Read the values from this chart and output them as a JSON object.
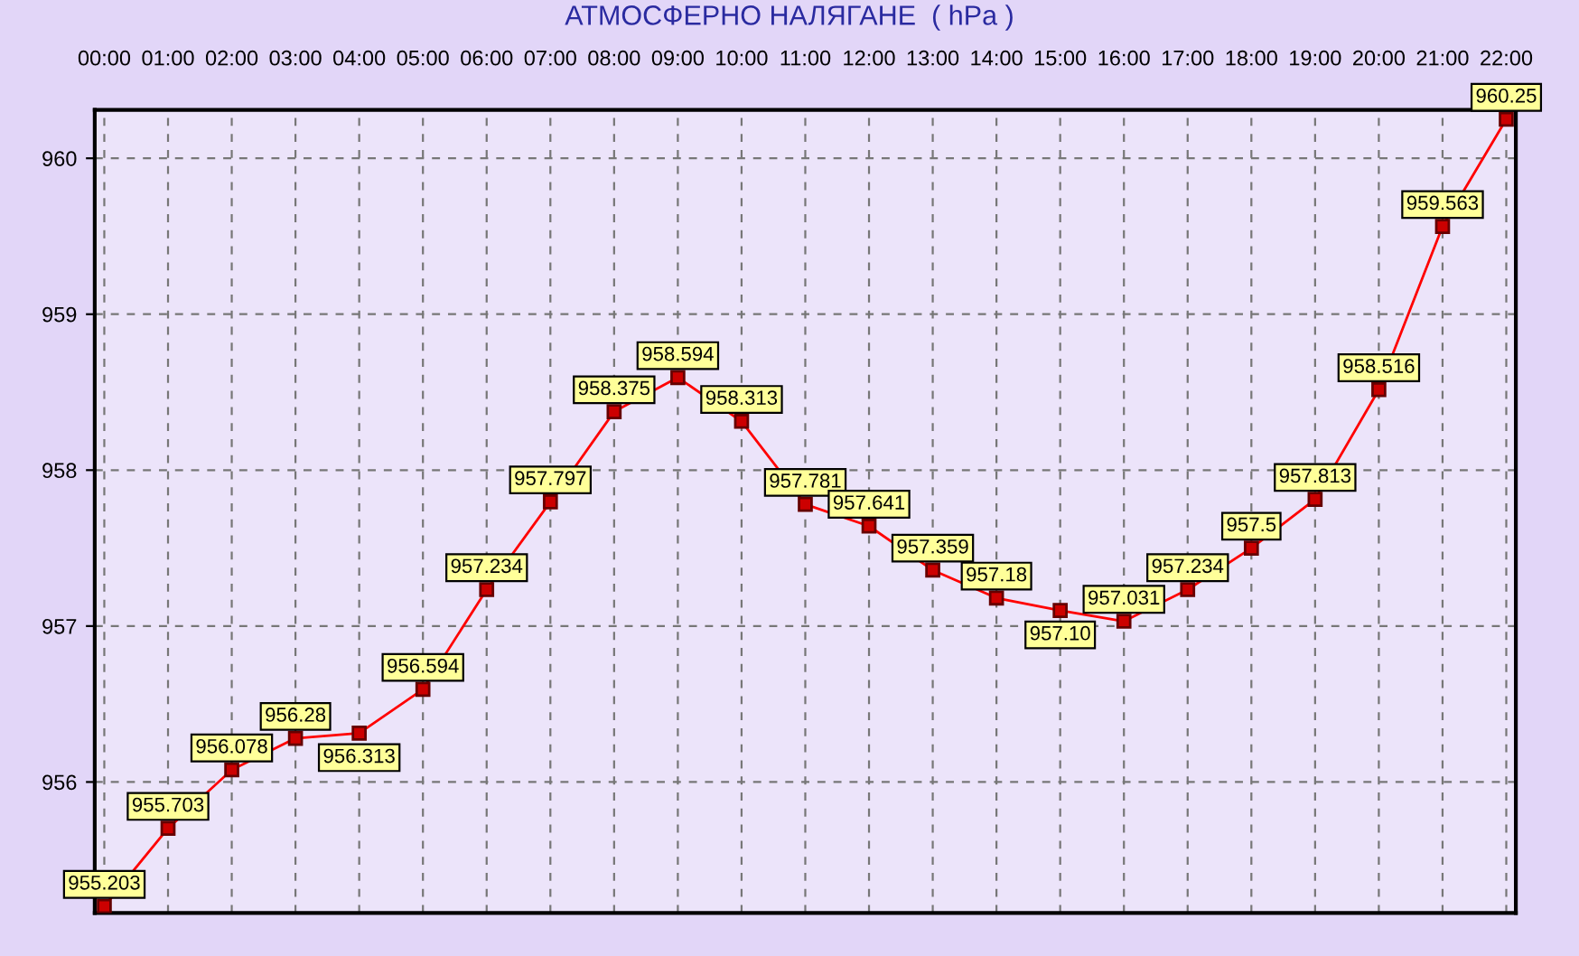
{
  "chart_data": {
    "type": "line",
    "title": "АТМОСФЕРНО НАЛЯГАНЕ  ( hPa )",
    "categories": [
      "00:00",
      "01:00",
      "02:00",
      "03:00",
      "04:00",
      "05:00",
      "06:00",
      "07:00",
      "08:00",
      "09:00",
      "10:00",
      "11:00",
      "12:00",
      "13:00",
      "14:00",
      "15:00",
      "16:00",
      "17:00",
      "18:00",
      "19:00",
      "20:00",
      "21:00",
      "22:00"
    ],
    "series": [
      {
        "color": "#ff0000",
        "values": [
          955.203,
          955.703,
          956.078,
          956.28,
          956.313,
          956.594,
          957.234,
          957.797,
          958.375,
          958.594,
          958.313,
          957.781,
          957.641,
          957.359,
          957.18,
          957.1,
          957.031,
          957.234,
          957.5,
          957.813,
          958.516,
          959.563,
          960.25
        ],
        "value_labels": [
          "955.203",
          "955.703",
          "956.078",
          "956.28",
          "956.313",
          "956.594",
          "957.234",
          "957.797",
          "958.375",
          "958.594",
          "958.313",
          "957.781",
          "957.641",
          "957.359",
          "957.18",
          "957.10",
          "957.031",
          "957.234",
          "957.5",
          "957.813",
          "958.516",
          "959.563",
          "960.25"
        ]
      }
    ],
    "ylim": [
      955.16,
      960.31
    ],
    "yticks": [
      956,
      957,
      958,
      959,
      960
    ],
    "grid": true,
    "marker": "square",
    "line_style": "solid",
    "legend": false
  }
}
